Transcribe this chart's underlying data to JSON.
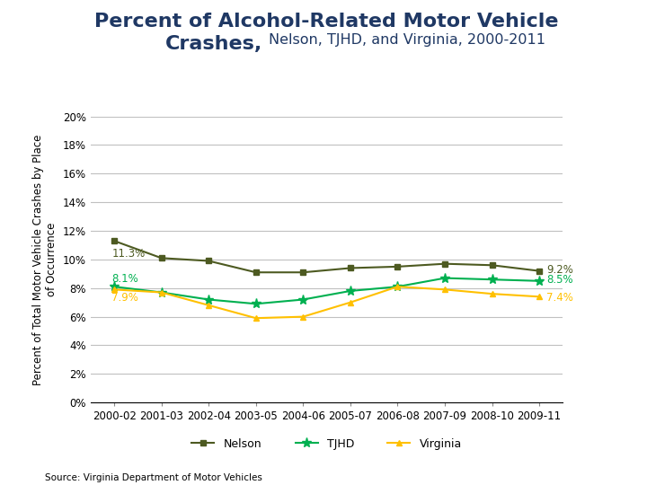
{
  "ylabel": "Percent of Total Motor Vehicle Crashes by Place\nof Occurrence",
  "source": "Source: Virginia Department of Motor Vehicles",
  "x_labels": [
    "2000-02",
    "2001-03",
    "2002-04",
    "2003-05",
    "2004-06",
    "2005-07",
    "2006-08",
    "2007-09",
    "2008-10",
    "2009-11"
  ],
  "nelson": [
    11.3,
    10.1,
    9.9,
    9.1,
    9.1,
    9.4,
    9.5,
    9.7,
    9.6,
    9.2
  ],
  "tjhd": [
    8.1,
    7.7,
    7.2,
    6.9,
    7.2,
    7.8,
    8.1,
    8.7,
    8.6,
    8.5
  ],
  "virginia": [
    7.9,
    7.7,
    6.8,
    5.9,
    6.0,
    7.0,
    8.1,
    7.9,
    7.6,
    7.4
  ],
  "nelson_color": "#4d5a21",
  "tjhd_color": "#00b050",
  "virginia_color": "#ffc000",
  "ylim": [
    0,
    20
  ],
  "yticks": [
    0,
    2,
    4,
    6,
    8,
    10,
    12,
    14,
    16,
    18,
    20
  ],
  "background_color": "#ffffff",
  "grid_color": "#c0c0c0",
  "title_color": "#1f3864",
  "annotation_fontsize": 8.5,
  "legend_fontsize": 9,
  "axis_label_fontsize": 8.5,
  "tick_fontsize": 8.5
}
